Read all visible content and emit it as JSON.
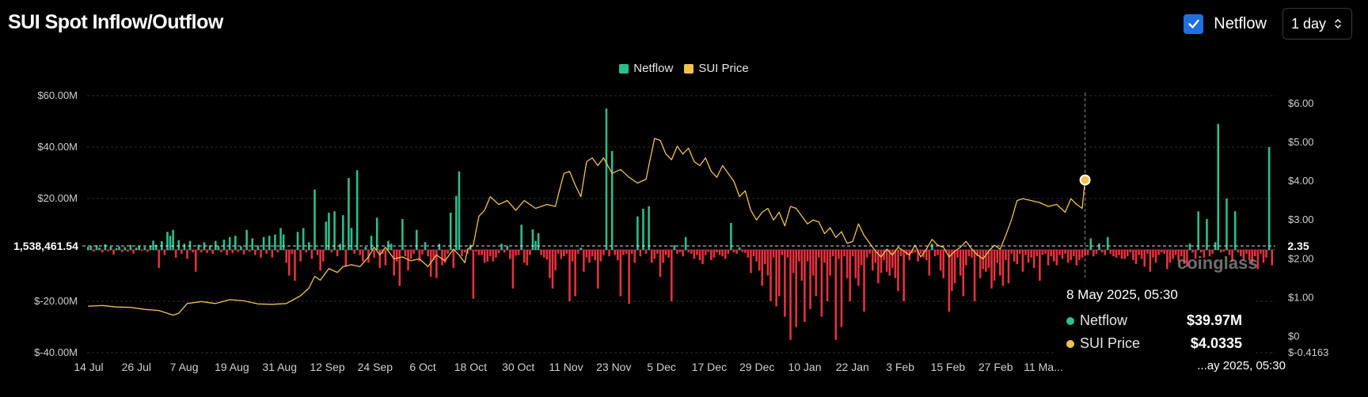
{
  "title": "SUI Spot Inflow/Outflow",
  "controls": {
    "netflow_toggle_label": "Netflow",
    "netflow_checked": true,
    "interval_value": "1 day",
    "accent_color": "#1f6fe0"
  },
  "watermark": "coinglass",
  "chart_data": {
    "type": "bar",
    "legend": [
      {
        "name": "Netflow",
        "color": "#2bbf8e"
      },
      {
        "name": "SUI Price",
        "color": "#f2c24f"
      }
    ],
    "legend_placement": "top-center",
    "grid": true,
    "left_axis": {
      "min": -40000000,
      "max": 60000000,
      "ticks": [
        "$60.00M",
        "$40.00M",
        "$20.00M",
        "$-20.00M",
        "$-40.00M"
      ],
      "tick_values": [
        60000000,
        40000000,
        20000000,
        -20000000,
        -40000000
      ]
    },
    "right_axis": {
      "min": -0.4163,
      "max": 6.2,
      "ticks": [
        "$6.00",
        "$5.00",
        "$4.00",
        "$3.00",
        "$2.00",
        "$1.00",
        "$0",
        "$-0.4163"
      ],
      "tick_values": [
        6,
        5,
        4,
        3,
        2,
        1,
        0,
        -0.4163
      ]
    },
    "crosshair": {
      "left_label": "1,538,461.54",
      "right_label": "2.35"
    },
    "x_ticks": [
      "14 Jul",
      "26 Jul",
      "7 Aug",
      "19 Aug",
      "31 Aug",
      "12 Sep",
      "24 Sep",
      "6 Oct",
      "18 Oct",
      "30 Oct",
      "11 Nov",
      "23 Nov",
      "5 Dec",
      "17 Dec",
      "29 Dec",
      "10 Jan",
      "22 Jan",
      "3 Feb",
      "15 Feb",
      "27 Feb",
      "11 Ma..."
    ],
    "tooltip": {
      "date": "8 May 2025, 05:30",
      "netflow_label": "Netflow",
      "netflow_value": "$39.97M",
      "price_label": "SUI Price",
      "price_value": "$4.0335"
    },
    "x_badge": "...ay 2025, 05:30",
    "series": [
      {
        "name": "Netflow",
        "unit": "USD millions",
        "positive_color": "#2bbf8e",
        "negative_color": "#e5323e",
        "values": [
          1.2,
          1.6,
          -0.6,
          1.8,
          0.9,
          -1.0,
          2.2,
          -0.5,
          1.3,
          -1.8,
          0.7,
          1.4,
          -0.9,
          1.1,
          -0.7,
          1.9,
          -1.4,
          0.9,
          1.5,
          -0.4,
          1.2,
          -0.8,
          1.6,
          3.6,
          2.0,
          -7.0,
          3.4,
          -2.0,
          7.0,
          5.5,
          7.8,
          -3.0,
          3.8,
          -1.5,
          2.4,
          -3.5,
          3.5,
          -1.0,
          -8.5,
          2.0,
          -1.0,
          3.0,
          -1.2,
          1.8,
          -1.6,
          3.5,
          1.5,
          -0.9,
          4.0,
          -2.0,
          5.0,
          -1.3,
          5.5,
          -0.8,
          1.4,
          -1.8,
          7.8,
          -0.7,
          4.5,
          -2.0,
          1.7,
          -3.0,
          5.0,
          -1.5,
          5.5,
          -3.0,
          6.0,
          -1.0,
          8.5,
          6.0,
          -5.0,
          -10.0,
          -1.6,
          -12.0,
          7.0,
          -4.5,
          8.5,
          -1.0,
          3.0,
          -3.5,
          23.5,
          -2.0,
          -8.0,
          -4.5,
          11.0,
          14.5,
          -1.0,
          15.0,
          -2.5,
          2.4,
          13.5,
          -6.5,
          28.0,
          8.5,
          -1.5,
          31.0,
          -2.0,
          -4.5,
          1.2,
          -5.0,
          5.5,
          -3.0,
          12.5,
          -7.0,
          -1.5,
          -6.0,
          3.5,
          2.4,
          -10.0,
          -4.5,
          -14.0,
          12.0,
          -2.5,
          -8.0,
          -3.5,
          -1.5,
          7.8,
          -4.5,
          -1.8,
          3.0,
          -2.5,
          -10.5,
          -4.0,
          -11.0,
          2.4,
          -6.0,
          -5.0,
          -1.5,
          14.5,
          -7.0,
          21.0,
          30.5,
          -2.5,
          -1.0,
          -1.5,
          2.0,
          -19.0,
          -0.7,
          -2.0,
          -2.0,
          -5.0,
          -4.5,
          -2.5,
          -4.5,
          -3.0,
          -1.3,
          2.4,
          -1.1,
          1.6,
          -3.5,
          -15.0,
          -2.2,
          -2.0,
          9.8,
          -5.0,
          -6.0,
          -2.0,
          8.0,
          3.5,
          6.5,
          -2.0,
          -3.0,
          -3.8,
          -11.0,
          -15.0,
          -8.0,
          -1.5,
          -3.5,
          -2.5,
          -1.5,
          -20.0,
          -4.5,
          -18.0,
          -1.5,
          0.9,
          -8.5,
          -3.0,
          -5.0,
          -2.5,
          -4.0,
          -15.0,
          -4.5,
          -2.0,
          55.0,
          -2.5,
          38.5,
          -2.0,
          -4.0,
          -18.0,
          -2.0,
          -1.5,
          -21.0,
          -1.5,
          -5.0,
          13.0,
          -2.5,
          16.0,
          -1.5,
          17.0,
          -5.0,
          -3.5,
          -1.5,
          -10.5,
          -5.0,
          -2.0,
          -3.0,
          -20.0,
          1.8,
          -1.5,
          -1.0,
          -2.5,
          5.0,
          -1.0,
          -1.5,
          -3.5,
          -2.0,
          -4.0,
          -5.5,
          -2.0,
          -0.8,
          -4.0,
          -3.0,
          -1.0,
          -2.0,
          -2.5,
          -3.5,
          -1.5,
          10.5,
          -1.0,
          -1.5,
          1.0,
          -0.8,
          -1.2,
          -3.0,
          -9.0,
          -2.5,
          -4.5,
          -8.0,
          -14.0,
          -5.5,
          -10.0,
          -20.0,
          -3.0,
          -22.0,
          -18.0,
          -2.0,
          -26.0,
          -3.0,
          -35.0,
          -9.0,
          -30.0,
          -4.5,
          -12.0,
          -28.0,
          -4.5,
          -23.0,
          -10.0,
          -18.0,
          -3.0,
          -26.0,
          -5.0,
          -20.0,
          -10.0,
          -2.5,
          -35.0,
          -3.5,
          -30.0,
          -2.5,
          -11.0,
          -20.0,
          -2.5,
          -11.0,
          -14.0,
          -6.0,
          -24.0,
          -3.0,
          -1.5,
          -8.0,
          -5.0,
          -13.0,
          -9.0,
          -4.0,
          -8.5,
          -10.0,
          -7.0,
          -11.0,
          -16.0,
          -2.5,
          -20.0,
          -2.0,
          -4.0,
          -1.3,
          -1.0,
          -4.5,
          -1.5,
          -3.0,
          -4.0,
          -10.0,
          2.4,
          -2.5,
          -2.0,
          -8.0,
          -11.0,
          -1.0,
          -24.0,
          -16.0,
          -13.0,
          -3.0,
          -10.0,
          -18.0,
          -6.0,
          -2.5,
          -3.0,
          -20.0,
          -2.5,
          -11.0,
          -7.5,
          -8.5,
          -7.0,
          -15.0,
          -12.0,
          -5.0,
          -10.0,
          -14.0,
          -4.0,
          -13.0,
          -1.5,
          -4.5,
          -5.5,
          -1.5,
          -8.5,
          -2.0,
          -5.0,
          -3.0,
          -7.0,
          -2.5,
          -12.0,
          -2.0,
          -1.5,
          -6.0,
          -2.5,
          -4.5,
          -6.0,
          -2.0,
          -3.5,
          -1.5,
          -5.0,
          -4.0,
          -2.5,
          -6.0,
          -4.0,
          -3.0,
          -2.0,
          -2.0,
          4.5,
          -2.5,
          -1.5,
          2.5,
          -1.0,
          -2.0,
          5.0,
          -1.5,
          -2.5,
          -3.0,
          -2.0,
          -3.5,
          -3.5,
          -2.5,
          -1.0,
          -4.0,
          -5.5,
          -2.0,
          -3.5,
          -6.5,
          -1.5,
          -8.5,
          -3.0,
          -5.0,
          -2.0,
          -1.0,
          -1.5,
          -7.5,
          -5.0,
          -3.5,
          -2.0,
          -4.5,
          -2.5,
          -5.5,
          -6.5,
          2.5,
          -1.0,
          -3.5,
          15.0,
          -1.0,
          -3.0,
          12.0,
          -2.5,
          -1.5,
          3.0,
          49.0,
          -1.0,
          -0.7,
          20.0,
          -2.0,
          -4.5,
          15.0,
          -1.0,
          -2.5,
          -4.0,
          -1.5,
          -4.0,
          -5.0,
          -2.5,
          -7.5,
          -1.5,
          -5.0,
          -3.0,
          40.0,
          -6.0
        ]
      },
      {
        "name": "SUI Price",
        "unit": "USD",
        "color": "#f2c24f",
        "points": [
          [
            0,
            0.78
          ],
          [
            5,
            0.8
          ],
          [
            10,
            0.76
          ],
          [
            15,
            0.75
          ],
          [
            20,
            0.7
          ],
          [
            25,
            0.67
          ],
          [
            30,
            0.55
          ],
          [
            32,
            0.6
          ],
          [
            35,
            0.85
          ],
          [
            40,
            0.9
          ],
          [
            45,
            0.85
          ],
          [
            50,
            0.95
          ],
          [
            55,
            0.92
          ],
          [
            60,
            0.84
          ],
          [
            65,
            0.83
          ],
          [
            70,
            0.85
          ],
          [
            75,
            1.05
          ],
          [
            78,
            1.25
          ],
          [
            80,
            1.55
          ],
          [
            82,
            1.45
          ],
          [
            85,
            1.75
          ],
          [
            88,
            1.65
          ],
          [
            90,
            1.8
          ],
          [
            93,
            1.85
          ],
          [
            96,
            1.8
          ],
          [
            99,
            2.05
          ],
          [
            101,
            2.3
          ],
          [
            103,
            2.1
          ],
          [
            105,
            2.3
          ],
          [
            108,
            2.0
          ],
          [
            111,
            2.05
          ],
          [
            114,
            1.95
          ],
          [
            117,
            2.0
          ],
          [
            120,
            1.8
          ],
          [
            123,
            2.1
          ],
          [
            126,
            1.95
          ],
          [
            129,
            2.25
          ],
          [
            131,
            2.1
          ],
          [
            133,
            1.9
          ],
          [
            134,
            2.25
          ],
          [
            136,
            2.35
          ],
          [
            138,
            3.1
          ],
          [
            140,
            3.25
          ],
          [
            142,
            3.6
          ],
          [
            145,
            3.4
          ],
          [
            148,
            3.5
          ],
          [
            151,
            3.25
          ],
          [
            154,
            3.5
          ],
          [
            158,
            3.3
          ],
          [
            162,
            3.4
          ],
          [
            165,
            3.35
          ],
          [
            166,
            3.65
          ],
          [
            168,
            4.2
          ],
          [
            170,
            4.25
          ],
          [
            172,
            3.9
          ],
          [
            174,
            3.6
          ],
          [
            176,
            4.5
          ],
          [
            178,
            4.6
          ],
          [
            180,
            4.4
          ],
          [
            182,
            4.6
          ],
          [
            185,
            4.2
          ],
          [
            188,
            4.3
          ],
          [
            191,
            4.1
          ],
          [
            194,
            3.95
          ],
          [
            197,
            4.05
          ],
          [
            198,
            4.4
          ],
          [
            200,
            5.1
          ],
          [
            202,
            5.05
          ],
          [
            204,
            4.7
          ],
          [
            206,
            4.55
          ],
          [
            208,
            4.9
          ],
          [
            210,
            4.7
          ],
          [
            212,
            4.85
          ],
          [
            214,
            4.5
          ],
          [
            216,
            4.4
          ],
          [
            218,
            4.6
          ],
          [
            220,
            4.25
          ],
          [
            222,
            4.1
          ],
          [
            224,
            4.4
          ],
          [
            226,
            4.2
          ],
          [
            228,
            4.0
          ],
          [
            230,
            3.6
          ],
          [
            232,
            3.75
          ],
          [
            234,
            3.25
          ],
          [
            236,
            3.0
          ],
          [
            238,
            3.2
          ],
          [
            240,
            3.3
          ],
          [
            242,
            3.0
          ],
          [
            244,
            3.2
          ],
          [
            246,
            2.85
          ],
          [
            248,
            3.35
          ],
          [
            250,
            3.3
          ],
          [
            252,
            3.1
          ],
          [
            254,
            2.9
          ],
          [
            256,
            3.0
          ],
          [
            258,
            2.95
          ],
          [
            260,
            2.65
          ],
          [
            262,
            2.8
          ],
          [
            264,
            2.55
          ],
          [
            266,
            2.7
          ],
          [
            268,
            2.4
          ],
          [
            270,
            2.45
          ],
          [
            272,
            2.9
          ],
          [
            274,
            2.6
          ],
          [
            276,
            2.4
          ],
          [
            278,
            2.2
          ],
          [
            280,
            2.05
          ],
          [
            282,
            2.25
          ],
          [
            284,
            2.1
          ],
          [
            286,
            2.3
          ],
          [
            288,
            2.2
          ],
          [
            290,
            2.1
          ],
          [
            292,
            2.35
          ],
          [
            294,
            2.05
          ],
          [
            296,
            2.25
          ],
          [
            298,
            2.5
          ],
          [
            300,
            2.35
          ],
          [
            302,
            2.3
          ],
          [
            304,
            2.05
          ],
          [
            306,
            2.2
          ],
          [
            308,
            2.3
          ],
          [
            310,
            2.45
          ],
          [
            312,
            2.25
          ],
          [
            314,
            2.1
          ],
          [
            316,
            2.0
          ],
          [
            318,
            2.2
          ],
          [
            320,
            2.35
          ],
          [
            322,
            2.25
          ],
          [
            324,
            2.6
          ],
          [
            326,
            3.0
          ],
          [
            328,
            3.5
          ],
          [
            330,
            3.55
          ],
          [
            333,
            3.5
          ],
          [
            336,
            3.45
          ],
          [
            339,
            3.35
          ],
          [
            342,
            3.4
          ],
          [
            345,
            3.2
          ],
          [
            347,
            3.55
          ],
          [
            349,
            3.4
          ],
          [
            351,
            3.3
          ],
          [
            352,
            4.03
          ]
        ]
      }
    ]
  }
}
